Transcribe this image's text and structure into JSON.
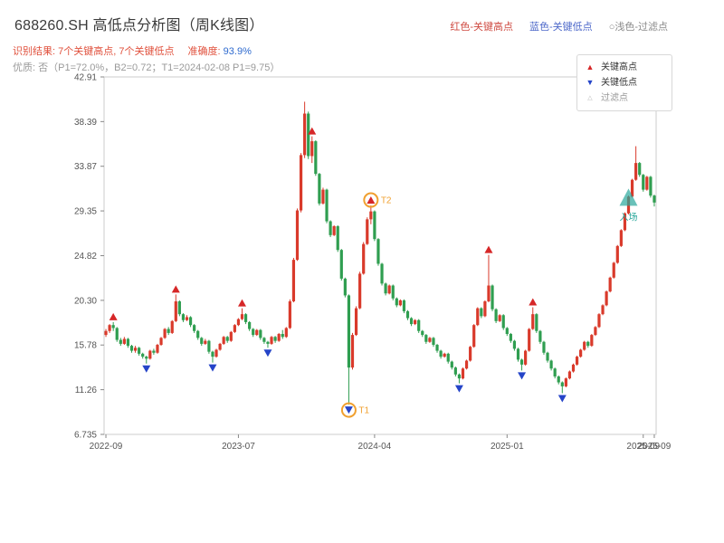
{
  "header": {
    "title": "688260.SH 高低点分析图（周K线图）",
    "subtitle_result": "识别结果: 7个关键高点, 7个关键低点",
    "subtitle_accuracy_label": "准确度: ",
    "subtitle_accuracy_value": "93.9%",
    "meta": "优质: 否（P1=72.0%，B2=0.72；T1=2024-02-08 P1=9.75）",
    "legend_top": [
      {
        "label": "红色-关键高点"
      },
      {
        "label": "蓝色-关键低点"
      },
      {
        "label": "○浅色-过滤点"
      }
    ]
  },
  "colors": {
    "title": "#3a3a3a",
    "subtitle_red": "#e0503c",
    "accuracy_blue": "#2f6bcf",
    "meta_gray": "#9a9a9a",
    "legend_red": "#cf4b42",
    "legend_blue": "#4d68c9",
    "legend_gray": "#8a8a8a"
  },
  "legend_box": {
    "items": [
      {
        "label": "关键高点",
        "marker": "up-triangle",
        "color": "#d62728",
        "text_color": "#333333"
      },
      {
        "label": "关键低点",
        "marker": "down-triangle",
        "color": "#2544c8",
        "text_color": "#333333"
      },
      {
        "label": "过滤点",
        "marker": "filter-triangle-outline",
        "color": "#bbbbbb",
        "text_color": "#999999"
      }
    ]
  },
  "chart_data": {
    "type": "candlestick",
    "title": "688260.SH 高低点分析图（周K线图）",
    "ylim": [
      6.735,
      42.91
    ],
    "y_ticks": [
      {
        "label": "42.91",
        "value": 42.91
      },
      {
        "label": "38.39",
        "value": 38.39
      },
      {
        "label": "33.87",
        "value": 33.87
      },
      {
        "label": "29.35",
        "value": 29.35
      },
      {
        "label": "24.82",
        "value": 24.82
      },
      {
        "label": "20.30",
        "value": 20.3
      },
      {
        "label": "15.78",
        "value": 15.78
      },
      {
        "label": "11.26",
        "value": 11.26
      },
      {
        "label": "6.735",
        "value": 6.735
      }
    ],
    "x_ticks": [
      {
        "label": "2022-09",
        "index": 0
      },
      {
        "label": "2023-07",
        "index": 36
      },
      {
        "label": "2024-04",
        "index": 73
      },
      {
        "label": "2025-01",
        "index": 109
      },
      {
        "label": "2025-09",
        "index": 146
      },
      {
        "label": "2025-09",
        "index": 149
      }
    ],
    "colors": {
      "up": "#d93a2b",
      "down": "#2f9e50",
      "key_high": "#d62728",
      "key_low": "#2544c8",
      "t_ring": "#f0a030",
      "entry": "#2aa79b",
      "axis": "#555555",
      "border": "#cccccc"
    },
    "candles": [
      [
        16.8,
        17.4,
        16.6,
        17.2
      ],
      [
        17.2,
        17.9,
        17.0,
        17.8
      ],
      [
        17.8,
        18.1,
        17.2,
        17.5
      ],
      [
        17.5,
        17.6,
        16.1,
        16.3
      ],
      [
        16.3,
        16.5,
        15.7,
        15.9
      ],
      [
        15.9,
        16.6,
        15.8,
        16.4
      ],
      [
        16.4,
        16.5,
        15.5,
        15.7
      ],
      [
        15.7,
        15.8,
        15.0,
        15.2
      ],
      [
        15.2,
        15.7,
        15.0,
        15.5
      ],
      [
        15.5,
        15.6,
        14.7,
        14.9
      ],
      [
        14.9,
        15.0,
        14.4,
        14.6
      ],
      [
        14.6,
        14.7,
        13.9,
        14.4
      ],
      [
        14.4,
        15.3,
        14.3,
        15.2
      ],
      [
        15.2,
        15.4,
        14.8,
        15.0
      ],
      [
        15.0,
        15.9,
        14.9,
        15.8
      ],
      [
        15.8,
        16.6,
        15.7,
        16.5
      ],
      [
        16.5,
        17.5,
        16.4,
        17.4
      ],
      [
        17.4,
        17.6,
        16.8,
        17.0
      ],
      [
        17.0,
        18.3,
        16.9,
        18.2
      ],
      [
        18.2,
        20.9,
        18.1,
        20.2
      ],
      [
        20.2,
        20.3,
        18.7,
        18.9
      ],
      [
        18.9,
        19.0,
        18.1,
        18.3
      ],
      [
        18.3,
        18.8,
        18.2,
        18.6
      ],
      [
        18.6,
        18.7,
        17.6,
        17.8
      ],
      [
        17.8,
        17.9,
        17.0,
        17.2
      ],
      [
        17.2,
        17.3,
        16.3,
        16.5
      ],
      [
        16.5,
        16.6,
        15.7,
        15.9
      ],
      [
        15.9,
        16.4,
        15.8,
        16.2
      ],
      [
        16.2,
        16.3,
        14.9,
        15.1
      ],
      [
        15.1,
        15.2,
        14.0,
        14.6
      ],
      [
        14.6,
        15.4,
        14.5,
        15.3
      ],
      [
        15.3,
        16.0,
        15.2,
        15.9
      ],
      [
        15.9,
        16.7,
        15.8,
        16.6
      ],
      [
        16.6,
        16.7,
        16.0,
        16.2
      ],
      [
        16.2,
        17.2,
        16.1,
        17.1
      ],
      [
        17.1,
        17.9,
        17.0,
        17.8
      ],
      [
        17.8,
        18.5,
        17.7,
        18.4
      ],
      [
        18.4,
        19.5,
        18.3,
        18.9
      ],
      [
        18.9,
        19.0,
        17.9,
        18.1
      ],
      [
        18.1,
        18.2,
        17.2,
        17.4
      ],
      [
        17.4,
        17.5,
        16.6,
        16.8
      ],
      [
        16.8,
        17.4,
        16.7,
        17.3
      ],
      [
        17.3,
        17.4,
        16.3,
        16.5
      ],
      [
        16.5,
        16.6,
        15.9,
        16.1
      ],
      [
        16.1,
        16.2,
        15.5,
        15.9
      ],
      [
        15.9,
        16.7,
        15.8,
        16.6
      ],
      [
        16.6,
        16.7,
        16.0,
        16.2
      ],
      [
        16.2,
        17.0,
        16.1,
        16.9
      ],
      [
        16.9,
        17.3,
        16.4,
        16.6
      ],
      [
        16.6,
        17.6,
        16.5,
        17.5
      ],
      [
        17.5,
        20.4,
        17.4,
        20.2
      ],
      [
        20.2,
        24.6,
        20.1,
        24.4
      ],
      [
        24.4,
        29.6,
        24.3,
        29.4
      ],
      [
        29.4,
        35.2,
        29.2,
        35.0
      ],
      [
        35.0,
        40.4,
        34.7,
        39.2
      ],
      [
        39.2,
        39.4,
        34.6,
        34.9
      ],
      [
        34.9,
        36.9,
        34.2,
        36.4
      ],
      [
        36.4,
        36.5,
        32.9,
        33.1
      ],
      [
        33.1,
        33.2,
        29.9,
        30.1
      ],
      [
        30.1,
        31.7,
        30.0,
        31.5
      ],
      [
        31.5,
        31.6,
        28.1,
        28.3
      ],
      [
        28.3,
        28.4,
        26.7,
        26.9
      ],
      [
        26.9,
        27.9,
        26.8,
        27.8
      ],
      [
        27.8,
        27.9,
        25.2,
        25.4
      ],
      [
        25.4,
        25.5,
        22.3,
        22.5
      ],
      [
        22.5,
        22.6,
        20.6,
        20.8
      ],
      [
        20.8,
        20.9,
        9.75,
        13.5
      ],
      [
        13.5,
        17.0,
        13.3,
        16.8
      ],
      [
        16.8,
        19.7,
        16.7,
        19.5
      ],
      [
        19.5,
        23.2,
        19.4,
        23.0
      ],
      [
        23.0,
        26.2,
        22.9,
        26.0
      ],
      [
        26.0,
        28.7,
        25.9,
        28.5
      ],
      [
        28.5,
        29.9,
        28.0,
        29.3
      ],
      [
        29.3,
        29.4,
        26.3,
        26.5
      ],
      [
        26.5,
        26.6,
        23.8,
        24.0
      ],
      [
        24.0,
        24.1,
        21.8,
        22.0
      ],
      [
        22.0,
        22.1,
        20.8,
        21.0
      ],
      [
        21.0,
        21.9,
        20.9,
        21.8
      ],
      [
        21.8,
        21.9,
        20.3,
        20.5
      ],
      [
        20.5,
        20.6,
        19.6,
        19.8
      ],
      [
        19.8,
        20.4,
        19.7,
        20.3
      ],
      [
        20.3,
        20.4,
        19.0,
        19.2
      ],
      [
        19.2,
        19.3,
        18.3,
        18.5
      ],
      [
        18.5,
        18.6,
        17.7,
        17.9
      ],
      [
        17.9,
        18.4,
        17.8,
        18.3
      ],
      [
        18.3,
        18.4,
        17.0,
        17.2
      ],
      [
        17.2,
        17.3,
        16.6,
        16.8
      ],
      [
        16.8,
        16.9,
        15.9,
        16.1
      ],
      [
        16.1,
        16.6,
        16.0,
        16.5
      ],
      [
        16.5,
        16.6,
        15.6,
        15.8
      ],
      [
        15.8,
        15.9,
        15.0,
        15.2
      ],
      [
        15.2,
        15.3,
        14.4,
        14.6
      ],
      [
        14.6,
        15.0,
        14.5,
        14.9
      ],
      [
        14.9,
        15.0,
        13.9,
        14.1
      ],
      [
        14.1,
        14.2,
        13.3,
        13.5
      ],
      [
        13.5,
        13.6,
        12.6,
        12.8
      ],
      [
        12.8,
        12.9,
        11.9,
        12.4
      ],
      [
        12.4,
        13.5,
        12.3,
        13.4
      ],
      [
        13.4,
        14.3,
        13.3,
        14.2
      ],
      [
        14.2,
        15.7,
        14.1,
        15.6
      ],
      [
        15.6,
        17.9,
        15.5,
        17.8
      ],
      [
        17.8,
        19.6,
        17.7,
        19.5
      ],
      [
        19.5,
        19.6,
        18.5,
        18.7
      ],
      [
        18.7,
        20.3,
        18.6,
        20.2
      ],
      [
        20.2,
        24.9,
        20.1,
        21.8
      ],
      [
        21.8,
        21.9,
        19.2,
        19.4
      ],
      [
        19.4,
        19.5,
        18.0,
        18.2
      ],
      [
        18.2,
        18.9,
        18.1,
        18.8
      ],
      [
        18.8,
        18.9,
        17.3,
        17.5
      ],
      [
        17.5,
        17.6,
        16.7,
        16.9
      ],
      [
        16.9,
        17.0,
        16.0,
        16.2
      ],
      [
        16.2,
        16.3,
        15.2,
        15.4
      ],
      [
        15.4,
        15.5,
        14.1,
        14.3
      ],
      [
        14.3,
        14.4,
        13.2,
        13.8
      ],
      [
        13.8,
        15.3,
        13.7,
        15.2
      ],
      [
        15.2,
        17.5,
        15.1,
        17.4
      ],
      [
        17.4,
        19.6,
        17.3,
        18.9
      ],
      [
        18.9,
        19.0,
        17.0,
        17.2
      ],
      [
        17.2,
        17.3,
        15.9,
        16.1
      ],
      [
        16.1,
        16.2,
        14.8,
        15.0
      ],
      [
        15.0,
        15.1,
        14.0,
        14.2
      ],
      [
        14.2,
        14.3,
        13.2,
        13.4
      ],
      [
        13.4,
        13.5,
        12.4,
        12.6
      ],
      [
        12.6,
        12.7,
        11.8,
        12.0
      ],
      [
        12.0,
        12.1,
        10.9,
        11.6
      ],
      [
        11.6,
        12.5,
        11.5,
        12.4
      ],
      [
        12.4,
        13.2,
        12.3,
        13.1
      ],
      [
        13.1,
        13.9,
        13.0,
        13.8
      ],
      [
        13.8,
        14.7,
        13.7,
        14.6
      ],
      [
        14.6,
        15.4,
        14.5,
        15.3
      ],
      [
        15.3,
        16.2,
        15.2,
        16.1
      ],
      [
        16.1,
        16.2,
        15.5,
        15.7
      ],
      [
        15.7,
        16.9,
        15.6,
        16.8
      ],
      [
        16.8,
        17.7,
        16.7,
        17.6
      ],
      [
        17.6,
        19.0,
        17.5,
        18.9
      ],
      [
        18.9,
        19.9,
        18.8,
        19.8
      ],
      [
        19.8,
        21.3,
        19.7,
        21.2
      ],
      [
        21.2,
        22.7,
        21.1,
        22.6
      ],
      [
        22.6,
        24.2,
        22.5,
        24.1
      ],
      [
        24.1,
        25.9,
        24.0,
        25.8
      ],
      [
        25.8,
        27.5,
        25.7,
        27.4
      ],
      [
        27.4,
        29.2,
        27.3,
        29.1
      ],
      [
        29.1,
        30.9,
        29.0,
        30.8
      ],
      [
        30.8,
        32.6,
        30.7,
        32.5
      ],
      [
        32.5,
        35.9,
        32.4,
        34.2
      ],
      [
        34.2,
        34.3,
        32.8,
        33.0
      ],
      [
        33.0,
        33.1,
        31.3,
        31.5
      ],
      [
        31.5,
        32.9,
        31.4,
        32.8
      ],
      [
        32.8,
        32.9,
        30.7,
        30.9
      ],
      [
        30.9,
        31.0,
        29.8,
        30.2
      ]
    ],
    "key_high_indices": [
      2,
      19,
      37,
      56,
      72,
      104,
      116
    ],
    "key_low_indices": [
      11,
      29,
      44,
      66,
      96,
      113,
      124
    ],
    "t_points": [
      {
        "label": "T1",
        "index": 66,
        "price": 9.75,
        "side": "low"
      },
      {
        "label": "T2",
        "index": 72,
        "price": 29.9,
        "side": "high"
      }
    ],
    "entry_marker": {
      "label": "入场",
      "index": 142,
      "price": 30.6
    }
  }
}
